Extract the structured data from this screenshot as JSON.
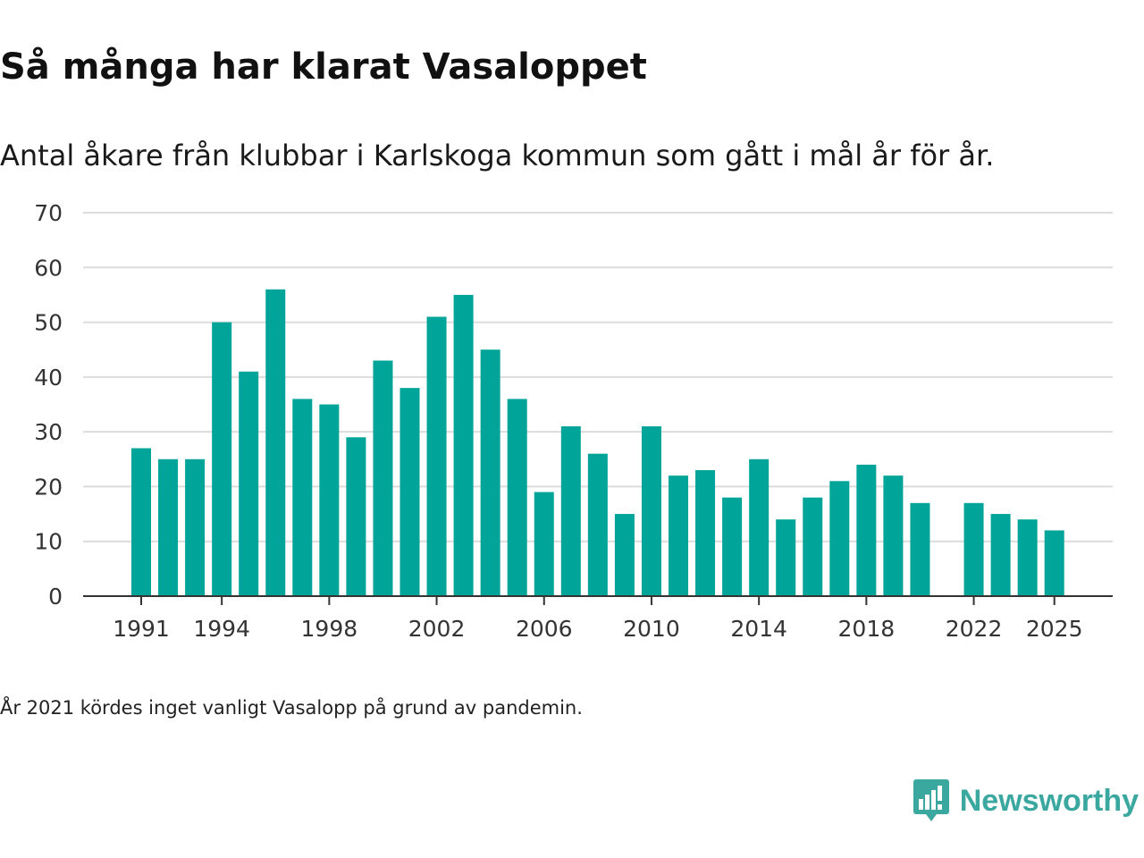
{
  "chart_data": {
    "type": "bar",
    "title": "Så många har klarat Vasaloppet",
    "subtitle": "Antal åkare från klubbar i Karlskoga kommun som gått i mål år för år.",
    "xlabel": "",
    "ylabel": "",
    "ylim": [
      0,
      70
    ],
    "y_ticks": [
      0,
      10,
      20,
      30,
      40,
      50,
      60,
      70
    ],
    "x_ticks": [
      1991,
      1994,
      1998,
      2002,
      2006,
      2010,
      2014,
      2018,
      2022,
      2025
    ],
    "grid": true,
    "legend": "none",
    "bar_color": "#00a499",
    "categories": [
      1991,
      1992,
      1993,
      1994,
      1995,
      1996,
      1997,
      1998,
      1999,
      2000,
      2001,
      2002,
      2003,
      2004,
      2005,
      2006,
      2007,
      2008,
      2009,
      2010,
      2011,
      2012,
      2013,
      2014,
      2015,
      2016,
      2017,
      2018,
      2019,
      2020,
      2021,
      2022,
      2023,
      2024,
      2025
    ],
    "values": [
      27,
      25,
      25,
      50,
      41,
      56,
      36,
      35,
      29,
      43,
      38,
      51,
      55,
      45,
      36,
      19,
      31,
      26,
      15,
      31,
      22,
      23,
      18,
      25,
      14,
      18,
      21,
      24,
      22,
      17,
      null,
      17,
      15,
      14,
      12
    ],
    "note": "År 2021 kördes inget vanligt Vasalopp på grund av pandemin."
  },
  "brand": {
    "name": "Newsworthy",
    "color": "#3aa89f",
    "icon": "newsworthy-logo-icon"
  }
}
